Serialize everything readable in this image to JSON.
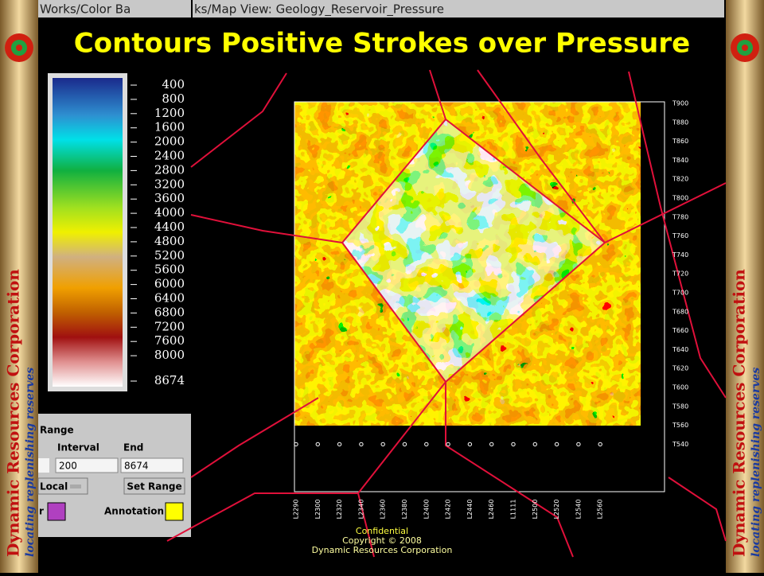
{
  "left_window_title": "Works/Color Ba",
  "right_window_title": "ks/Map View: Geology_Reservoir_Pressure",
  "title": "Contours Positive Strokes over Pressure",
  "colorbar_labels": [
    "400",
    "800",
    "1200",
    "1600",
    "2000",
    "2400",
    "2800",
    "3200",
    "3600",
    "4000",
    "4400",
    "4800",
    "5200",
    "5600",
    "6000",
    "6400",
    "6800",
    "7200",
    "7600",
    "8000",
    "8674"
  ],
  "range_panel": {
    "heading": "Range",
    "interval_label": "Interval",
    "end_label": "End",
    "interval_value": "200",
    "end_value": "8674",
    "local_button": "Local",
    "set_range_button": "Set Range",
    "color_label": "r",
    "annotation_label": "Annotation"
  },
  "map_row_labels": [
    "T900",
    "T880",
    "T860",
    "T840",
    "T820",
    "T800",
    "T780",
    "T760",
    "T740",
    "T720",
    "T700",
    "T680",
    "T660",
    "T640",
    "T620",
    "T600",
    "T580",
    "T560",
    "T540"
  ],
  "map_column_labels": [
    "L2290",
    "L2300",
    "L2320",
    "L2340",
    "L2360",
    "L2380",
    "L2400",
    "L2420",
    "L2440",
    "L2460",
    "L1111",
    "L2500",
    "L2520",
    "L2540",
    "L2560"
  ],
  "footer": [
    "Confidential",
    "Copyright © 2008",
    "Dynamic Resources Corporation"
  ],
  "sidebar": {
    "company": "Dynamic Resources Corporation",
    "slogan": "locating replenishing reserves"
  }
}
